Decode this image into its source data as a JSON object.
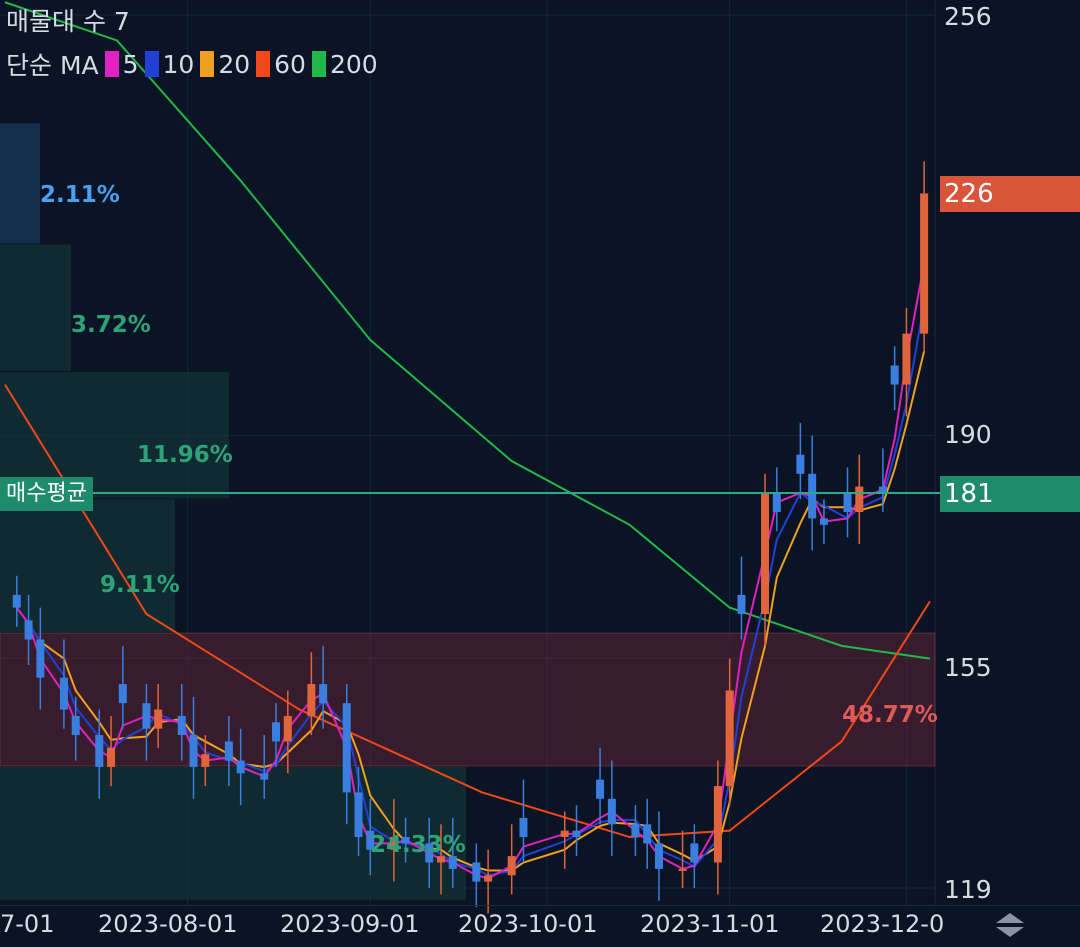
{
  "header": {
    "title": "매물대 수 7",
    "legend_prefix": "단순 MA",
    "ma_items": [
      {
        "label": "5",
        "color": "#e020c0"
      },
      {
        "label": "10",
        "color": "#2040d8"
      },
      {
        "label": "20",
        "color": "#f0a020"
      },
      {
        "label": "60",
        "color": "#f04818"
      },
      {
        "label": "200",
        "color": "#20b848"
      }
    ]
  },
  "price_axis": {
    "ticks": [
      "256",
      "190",
      "155",
      "119"
    ]
  },
  "tags": {
    "current_price": "226",
    "current_color": "#d8553a",
    "avg_price": "181",
    "avg_color": "#1e8c6a",
    "avg_label": "매수평균"
  },
  "volume_profile": [
    {
      "label": "2.11%",
      "color": "#4aa0f0"
    },
    {
      "label": "3.72%",
      "color": "#2ea37a"
    },
    {
      "label": "11.96%",
      "color": "#2ea37a"
    },
    {
      "label": "9.11%",
      "color": "#2ea37a"
    },
    {
      "label": "48.77%",
      "color": "#e05a5a"
    },
    {
      "label": "24.33%",
      "color": "#2ea37a"
    }
  ],
  "x_axis": {
    "ticks": [
      "7-01",
      "2023-08-01",
      "2023-09-01",
      "2023-10-01",
      "2023-11-01",
      "2023-12-0"
    ]
  },
  "chart_data": {
    "type": "candlestick",
    "title": "매물대 수 7",
    "y_range": [
      115,
      260
    ],
    "x_range": [
      "2023-07-01",
      "2023-12-05"
    ],
    "close_series": [
      [
        "2023-07-03",
        163
      ],
      [
        "2023-07-05",
        158
      ],
      [
        "2023-07-07",
        152
      ],
      [
        "2023-07-11",
        147
      ],
      [
        "2023-07-13",
        143
      ],
      [
        "2023-07-17",
        138
      ],
      [
        "2023-07-19",
        141
      ],
      [
        "2023-07-21",
        148
      ],
      [
        "2023-07-25",
        144
      ],
      [
        "2023-07-27",
        147
      ],
      [
        "2023-07-31",
        143
      ],
      [
        "2023-08-02",
        138
      ],
      [
        "2023-08-04",
        140
      ],
      [
        "2023-08-08",
        139
      ],
      [
        "2023-08-10",
        137
      ],
      [
        "2023-08-14",
        136
      ],
      [
        "2023-08-16",
        142
      ],
      [
        "2023-08-18",
        146
      ],
      [
        "2023-08-22",
        151
      ],
      [
        "2023-08-24",
        148
      ],
      [
        "2023-08-28",
        134
      ],
      [
        "2023-08-30",
        127
      ],
      [
        "2023-09-01",
        125
      ],
      [
        "2023-09-05",
        127
      ],
      [
        "2023-09-07",
        126
      ],
      [
        "2023-09-11",
        123
      ],
      [
        "2023-09-13",
        124
      ],
      [
        "2023-09-15",
        122
      ],
      [
        "2023-09-19",
        120
      ],
      [
        "2023-09-21",
        121
      ],
      [
        "2023-09-25",
        124
      ],
      [
        "2023-09-27",
        127
      ],
      [
        "2023-10-04",
        128
      ],
      [
        "2023-10-06",
        127
      ],
      [
        "2023-10-10",
        133
      ],
      [
        "2023-10-12",
        129
      ],
      [
        "2023-10-16",
        127
      ],
      [
        "2023-10-18",
        126
      ],
      [
        "2023-10-20",
        122
      ],
      [
        "2023-10-24",
        122
      ],
      [
        "2023-10-26",
        123
      ],
      [
        "2023-10-30",
        135
      ],
      [
        "2023-11-01",
        150
      ],
      [
        "2023-11-03",
        162
      ],
      [
        "2023-11-07",
        181
      ],
      [
        "2023-11-09",
        178
      ],
      [
        "2023-11-13",
        184
      ],
      [
        "2023-11-15",
        177
      ],
      [
        "2023-11-17",
        176
      ],
      [
        "2023-11-21",
        178
      ],
      [
        "2023-11-23",
        182
      ],
      [
        "2023-11-27",
        181
      ],
      [
        "2023-11-29",
        198
      ],
      [
        "2023-12-01",
        206
      ],
      [
        "2023-12-04",
        228
      ]
    ],
    "moving_averages": [
      {
        "name": "5",
        "color": "#e020c0"
      },
      {
        "name": "10",
        "color": "#2040d8"
      },
      {
        "name": "20",
        "color": "#f0a020"
      },
      {
        "name": "60",
        "color": "#f04818"
      },
      {
        "name": "200",
        "color": "#20b848"
      }
    ],
    "ma_endpoints": {
      "5": 217,
      "10": 200,
      "20": 189,
      "60": 164,
      "200": 155
    },
    "ma200_path": [
      [
        "2023-07-01",
        258
      ],
      [
        "2023-07-20",
        252
      ],
      [
        "2023-08-10",
        230
      ],
      [
        "2023-09-01",
        205
      ],
      [
        "2023-09-25",
        186
      ],
      [
        "2023-10-15",
        176
      ],
      [
        "2023-11-01",
        163
      ],
      [
        "2023-11-20",
        157
      ],
      [
        "2023-12-05",
        155
      ]
    ],
    "ma60_path": [
      [
        "2023-07-01",
        198
      ],
      [
        "2023-07-25",
        162
      ],
      [
        "2023-08-20",
        147
      ],
      [
        "2023-09-20",
        134
      ],
      [
        "2023-10-15",
        127
      ],
      [
        "2023-11-01",
        128
      ],
      [
        "2023-11-20",
        142
      ],
      [
        "2023-12-05",
        164
      ]
    ],
    "volume_profile_bands": [
      {
        "from": 220,
        "to": 239,
        "pct": 2.11
      },
      {
        "from": 200,
        "to": 220,
        "pct": 3.72
      },
      {
        "from": 180,
        "to": 200,
        "pct": 11.96
      },
      {
        "from": 159,
        "to": 180,
        "pct": 9.11
      },
      {
        "from": 138,
        "to": 159,
        "pct": 48.77
      },
      {
        "from": 117,
        "to": 138,
        "pct": 24.33
      }
    ],
    "avg_price": 181,
    "last_price": 226
  }
}
